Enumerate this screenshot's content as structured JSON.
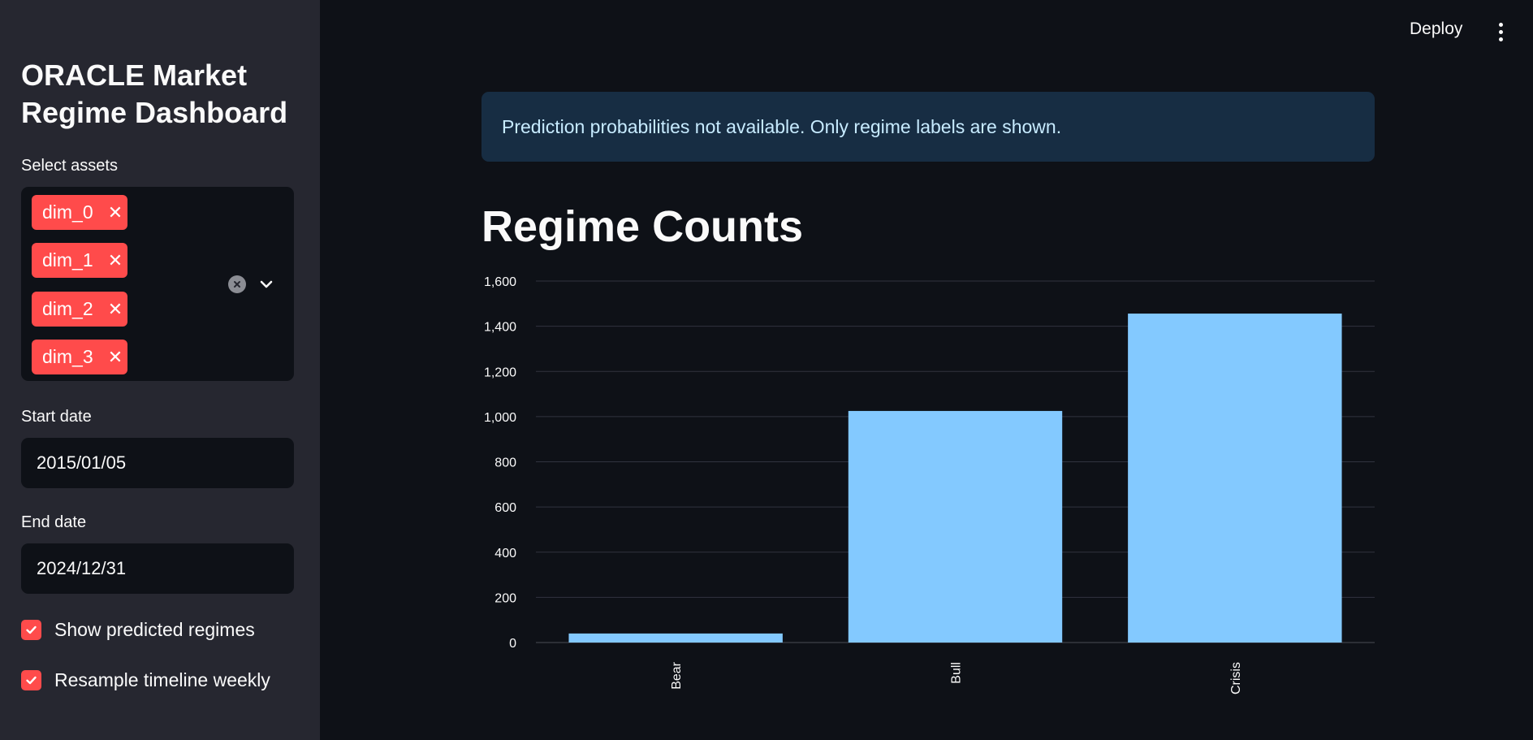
{
  "header": {
    "deploy_label": "Deploy",
    "menu_icon": "vertical-ellipsis-icon"
  },
  "sidebar": {
    "title": "ORACLE Market Regime Dashboard",
    "assets": {
      "label": "Select assets",
      "selected": [
        "dim_0",
        "dim_1",
        "dim_2",
        "dim_3"
      ],
      "tag_color": "#ff4b4b"
    },
    "start_date": {
      "label": "Start date",
      "value": "2015/01/05"
    },
    "end_date": {
      "label": "End date",
      "value": "2024/12/31"
    },
    "checkboxes": [
      {
        "label": "Show predicted regimes",
        "checked": true
      },
      {
        "label": "Resample timeline weekly",
        "checked": true
      }
    ]
  },
  "main": {
    "info_message": "Prediction probabilities not available. Only regime labels are shown.",
    "heading": "Regime Counts"
  },
  "colors": {
    "accent": "#ff4b4b",
    "bar": "#83c9ff",
    "info_bg": "#172d43",
    "info_text": "#c7ebff"
  },
  "chart_data": {
    "type": "bar",
    "categories": [
      "Bear",
      "Bull",
      "Crisis"
    ],
    "values": [
      40,
      1025,
      1456
    ],
    "title": "",
    "xlabel": "",
    "ylabel": "",
    "ylim": [
      0,
      1600
    ],
    "yticks": [
      "0",
      "200",
      "400",
      "600",
      "800",
      "1,000",
      "1,200",
      "1,400",
      "1,600"
    ],
    "grid": true,
    "color": "#83c9ff"
  }
}
